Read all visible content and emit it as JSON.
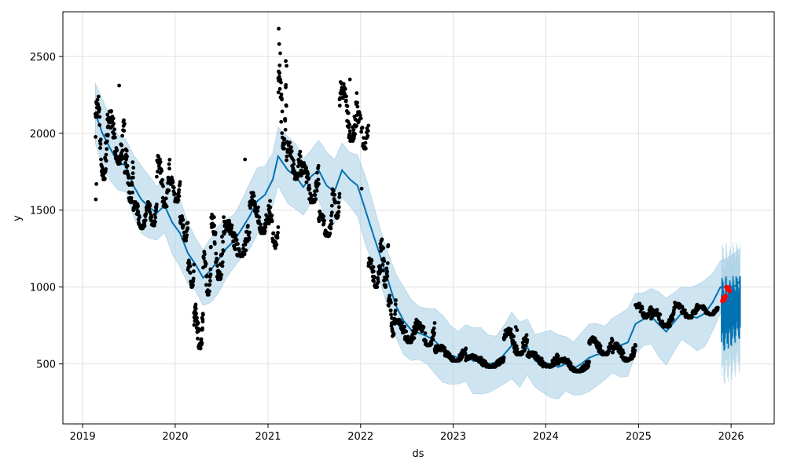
{
  "chart_data": {
    "type": "scatter",
    "xlabel": "ds",
    "ylabel": "y",
    "xlim": [
      "2018-10-15",
      "2026-06-20"
    ],
    "ylim": [
      110,
      2790
    ],
    "x_ticks": [
      "2019",
      "2020",
      "2021",
      "2022",
      "2023",
      "2024",
      "2025",
      "2026"
    ],
    "y_ticks": [
      500,
      1000,
      1500,
      2000,
      2500
    ],
    "grid": true,
    "colors": {
      "observed": "#000000",
      "forecast_line": "#0072b2",
      "interval": "#a6cee3",
      "forecast_points": "#0072b2",
      "recent_actuals": "#ff0000",
      "grid": "#e0e0e0"
    },
    "series": [
      {
        "kind": "line",
        "points": [
          [
            "2019-02-20",
            2130
          ],
          [
            "2019-03-20",
            2000
          ],
          [
            "2019-04-20",
            1900
          ],
          [
            "2019-05-20",
            1810
          ],
          [
            "2019-06-20",
            1790
          ],
          [
            "2019-07-20",
            1660
          ],
          [
            "2019-08-20",
            1570
          ],
          [
            "2019-09-20",
            1520
          ],
          [
            "2019-10-20",
            1480
          ],
          [
            "2019-11-20",
            1530
          ],
          [
            "2019-12-20",
            1420
          ],
          [
            "2020-01-20",
            1350
          ],
          [
            "2020-02-20",
            1220
          ],
          [
            "2020-03-20",
            1150
          ],
          [
            "2020-04-20",
            1060
          ],
          [
            "2020-05-20",
            1110
          ],
          [
            "2020-06-20",
            1180
          ],
          [
            "2020-07-20",
            1250
          ],
          [
            "2020-08-20",
            1300
          ],
          [
            "2020-09-20",
            1380
          ],
          [
            "2020-10-20",
            1460
          ],
          [
            "2020-11-20",
            1560
          ],
          [
            "2020-12-20",
            1600
          ],
          [
            "2021-01-20",
            1700
          ],
          [
            "2021-02-10",
            1850
          ],
          [
            "2021-03-20",
            1760
          ],
          [
            "2021-04-20",
            1720
          ],
          [
            "2021-05-20",
            1650
          ],
          [
            "2021-06-20",
            1720
          ],
          [
            "2021-07-20",
            1760
          ],
          [
            "2021-08-20",
            1660
          ],
          [
            "2021-09-20",
            1620
          ],
          [
            "2021-10-20",
            1760
          ],
          [
            "2021-11-20",
            1700
          ],
          [
            "2021-12-20",
            1660
          ],
          [
            "2022-01-20",
            1500
          ],
          [
            "2022-02-20",
            1340
          ],
          [
            "2022-03-20",
            1200
          ],
          [
            "2022-04-20",
            1040
          ],
          [
            "2022-05-20",
            880
          ],
          [
            "2022-06-20",
            780
          ],
          [
            "2022-07-20",
            720
          ],
          [
            "2022-08-20",
            700
          ],
          [
            "2022-09-20",
            680
          ],
          [
            "2022-10-20",
            650
          ],
          [
            "2022-11-20",
            600
          ],
          [
            "2022-12-20",
            560
          ],
          [
            "2023-01-20",
            540
          ],
          [
            "2023-02-20",
            570
          ],
          [
            "2023-03-20",
            520
          ],
          [
            "2023-04-20",
            520
          ],
          [
            "2023-05-20",
            500
          ],
          [
            "2023-06-20",
            510
          ],
          [
            "2023-07-20",
            560
          ],
          [
            "2023-08-20",
            620
          ],
          [
            "2023-09-20",
            560
          ],
          [
            "2023-10-20",
            610
          ],
          [
            "2023-11-20",
            520
          ],
          [
            "2023-12-20",
            510
          ],
          [
            "2024-01-20",
            500
          ],
          [
            "2024-02-20",
            480
          ],
          [
            "2024-03-20",
            500
          ],
          [
            "2024-04-20",
            470
          ],
          [
            "2024-05-20",
            500
          ],
          [
            "2024-06-20",
            540
          ],
          [
            "2024-07-20",
            560
          ],
          [
            "2024-08-20",
            570
          ],
          [
            "2024-09-20",
            620
          ],
          [
            "2024-10-20",
            620
          ],
          [
            "2024-11-20",
            640
          ],
          [
            "2024-12-20",
            760
          ],
          [
            "2025-01-20",
            790
          ],
          [
            "2025-02-20",
            810
          ],
          [
            "2025-03-20",
            760
          ],
          [
            "2025-04-20",
            710
          ],
          [
            "2025-05-20",
            770
          ],
          [
            "2025-06-20",
            830
          ],
          [
            "2025-07-20",
            810
          ],
          [
            "2025-08-20",
            800
          ],
          [
            "2025-09-20",
            830
          ],
          [
            "2025-10-20",
            900
          ],
          [
            "2025-11-20",
            1000
          ],
          [
            "2025-12-20",
            1000
          ],
          [
            "2026-01-20",
            1010
          ],
          [
            "2026-02-05",
            1040
          ]
        ]
      },
      {
        "kind": "observed",
        "clusters": [
          [
            "2019-02-20",
            "2019-04-10",
            1700,
            2250,
            60
          ],
          [
            "2019-04-10",
            "2019-06-15",
            1800,
            2150,
            70
          ],
          [
            "2019-06-15",
            "2019-07-20",
            1550,
            1900,
            40
          ],
          [
            "2019-07-20",
            "2019-09-10",
            1380,
            1560,
            55
          ],
          [
            "2019-09-10",
            "2019-10-20",
            1400,
            1560,
            40
          ],
          [
            "2019-10-20",
            "2019-12-10",
            1520,
            1860,
            45
          ],
          [
            "2019-12-10",
            "2020-01-20",
            1550,
            1720,
            40
          ],
          [
            "2020-01-20",
            "2020-02-20",
            1300,
            1480,
            30
          ],
          [
            "2020-02-20",
            "2020-03-15",
            1000,
            1200,
            25
          ],
          [
            "2020-03-15",
            "2020-04-20",
            600,
            900,
            55
          ],
          [
            "2020-04-20",
            "2020-05-20",
            950,
            1250,
            30
          ],
          [
            "2020-05-20",
            "2020-07-10",
            1050,
            1500,
            55
          ],
          [
            "2020-07-10",
            "2020-10-20",
            1200,
            1450,
            80
          ],
          [
            "2020-10-20",
            "2021-01-10",
            1350,
            1620,
            80
          ],
          [
            "2021-01-05",
            "2021-02-10",
            1250,
            1500,
            30
          ],
          [
            "2021-02-10",
            "2021-03-15",
            1900,
            2500,
            40
          ],
          [
            "2021-03-15",
            "2021-05-10",
            1700,
            1950,
            50
          ],
          [
            "2021-05-10",
            "2021-07-20",
            1550,
            1820,
            70
          ],
          [
            "2021-07-20",
            "2021-09-10",
            1330,
            1500,
            50
          ],
          [
            "2021-09-10",
            "2021-10-10",
            1450,
            1650,
            30
          ],
          [
            "2021-10-10",
            "2021-12-20",
            1950,
            2350,
            70
          ],
          [
            "2021-12-20",
            "2022-02-01",
            1900,
            2150,
            30
          ],
          [
            "2022-02-01",
            "2022-03-20",
            1000,
            1200,
            45
          ],
          [
            "2022-03-20",
            "2022-04-20",
            1000,
            1330,
            30
          ],
          [
            "2022-04-20",
            "2022-05-20",
            680,
            950,
            35
          ],
          [
            "2022-05-20",
            "2022-08-10",
            640,
            800,
            70
          ],
          [
            "2022-08-10",
            "2022-10-20",
            620,
            780,
            60
          ],
          [
            "2022-10-20",
            "2023-02-20",
            520,
            620,
            110
          ],
          [
            "2023-02-20",
            "2023-07-20",
            480,
            560,
            120
          ],
          [
            "2023-07-20",
            "2023-10-20",
            560,
            740,
            80
          ],
          [
            "2023-10-20",
            "2024-02-20",
            480,
            580,
            100
          ],
          [
            "2024-02-20",
            "2024-06-20",
            450,
            540,
            90
          ],
          [
            "2024-06-20",
            "2024-09-20",
            560,
            680,
            80
          ],
          [
            "2024-09-20",
            "2024-12-20",
            520,
            640,
            70
          ],
          [
            "2024-12-20",
            "2025-02-20",
            800,
            900,
            50
          ],
          [
            "2025-02-20",
            "2025-05-20",
            740,
            860,
            70
          ],
          [
            "2025-05-20",
            "2025-08-20",
            800,
            900,
            70
          ],
          [
            "2025-08-20",
            "2025-11-10",
            820,
            880,
            60
          ]
        ],
        "points": [
          [
            "2019-02-22",
            1570
          ],
          [
            "2019-02-24",
            1670
          ],
          [
            "2019-05-25",
            2310
          ],
          [
            "2021-02-12",
            2680
          ],
          [
            "2021-02-14",
            2580
          ],
          [
            "2021-02-18",
            2520
          ],
          [
            "2021-03-12",
            2470
          ],
          [
            "2021-11-20",
            2350
          ],
          [
            "2022-01-05",
            1640
          ],
          [
            "2020-10-02",
            1830
          ],
          [
            "2023-09-05",
            740
          ],
          [
            "2023-09-10",
            720
          ]
        ]
      },
      {
        "kind": "recent_actuals",
        "points": [
          [
            "2025-11-28",
            910
          ],
          [
            "2025-12-02",
            930
          ],
          [
            "2025-12-06",
            920
          ],
          [
            "2025-12-10",
            940
          ],
          [
            "2025-12-14",
            1000
          ],
          [
            "2025-12-18",
            985
          ],
          [
            "2025-12-22",
            995
          ],
          [
            "2025-12-26",
            975
          ]
        ]
      },
      {
        "kind": "forecast_points",
        "range": [
          "2025-11-25",
          "2026-02-05"
        ],
        "y_range": [
          580,
          1070
        ]
      }
    ]
  }
}
